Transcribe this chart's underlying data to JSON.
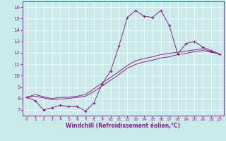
{
  "xlabel": "Windchill (Refroidissement éolien,°C)",
  "xlim_min": -0.5,
  "xlim_max": 23.5,
  "ylim_min": 6.5,
  "ylim_max": 16.5,
  "yticks": [
    7,
    8,
    9,
    10,
    11,
    12,
    13,
    14,
    15,
    16
  ],
  "xticks": [
    0,
    1,
    2,
    3,
    4,
    5,
    6,
    7,
    8,
    9,
    10,
    11,
    12,
    13,
    14,
    15,
    16,
    17,
    18,
    19,
    20,
    21,
    22,
    23
  ],
  "bg_color": "#caeaea",
  "line_color": "#882288",
  "main_series": [
    8.1,
    7.8,
    7.0,
    7.2,
    7.4,
    7.3,
    7.3,
    6.9,
    7.6,
    9.3,
    10.4,
    12.6,
    15.1,
    15.7,
    15.2,
    15.1,
    15.7,
    14.4,
    11.9,
    12.8,
    13.0,
    12.5,
    12.2,
    11.9
  ],
  "line2": [
    8.1,
    8.2,
    8.05,
    7.9,
    7.95,
    8.0,
    8.1,
    8.2,
    8.6,
    9.1,
    9.6,
    10.1,
    10.65,
    11.0,
    11.2,
    11.35,
    11.55,
    11.65,
    11.85,
    11.95,
    12.1,
    12.2,
    12.05,
    11.9
  ],
  "line3": [
    8.1,
    8.35,
    8.15,
    8.0,
    8.1,
    8.1,
    8.2,
    8.35,
    8.85,
    9.35,
    9.85,
    10.35,
    10.9,
    11.3,
    11.5,
    11.65,
    11.85,
    11.95,
    12.05,
    12.15,
    12.25,
    12.35,
    12.1,
    11.9
  ]
}
